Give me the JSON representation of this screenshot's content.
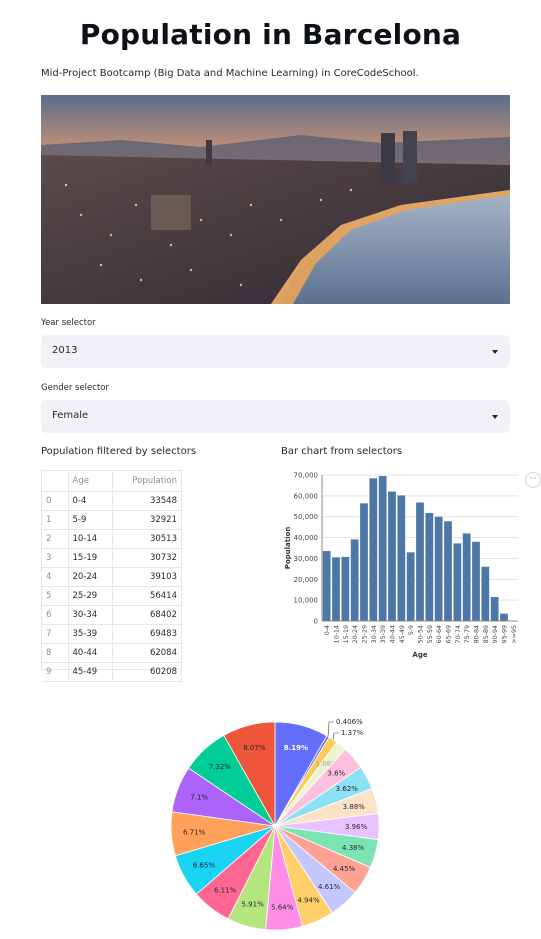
{
  "page": {
    "title": "Population in Barcelona",
    "subtitle": "Mid-Project Bootcamp (Big Data and Machine Learning) in CoreCodeSchool."
  },
  "hero": {
    "description": "Barcelona coastline at sunset"
  },
  "year_selector": {
    "label": "Year selector",
    "value": "2013"
  },
  "gender_selector": {
    "label": "Gender selector",
    "value": "Female"
  },
  "table": {
    "heading": "Population filtered by selectors",
    "columns": [
      "",
      "Age",
      "Population"
    ],
    "rows": [
      {
        "idx": "0",
        "age": "0-4",
        "pop": "33548"
      },
      {
        "idx": "1",
        "age": "5-9",
        "pop": "32921"
      },
      {
        "idx": "2",
        "age": "10-14",
        "pop": "30513"
      },
      {
        "idx": "3",
        "age": "15-19",
        "pop": "30732"
      },
      {
        "idx": "4",
        "age": "20-24",
        "pop": "39103"
      },
      {
        "idx": "5",
        "age": "25-29",
        "pop": "56414"
      },
      {
        "idx": "6",
        "age": "30-34",
        "pop": "68402"
      },
      {
        "idx": "7",
        "age": "35-39",
        "pop": "69483"
      },
      {
        "idx": "8",
        "age": "40-44",
        "pop": "62084"
      },
      {
        "idx": "9",
        "age": "45-49",
        "pop": "60208"
      }
    ]
  },
  "bar_heading": "Bar chart from selectors",
  "more_button": "···",
  "chart_data": [
    {
      "type": "bar",
      "title": "",
      "xlabel": "Age",
      "ylabel": "Population",
      "ylim": [
        0,
        70000
      ],
      "yticks": [
        "0",
        "10,000",
        "20,000",
        "30,000",
        "40,000",
        "50,000",
        "60,000",
        "70,000"
      ],
      "color": "#4c78a8",
      "categories": [
        "0-4",
        "10-14",
        "15-19",
        "20-24",
        "25-29",
        "30-34",
        "35-39",
        "40-44",
        "45-49",
        "5-9",
        "50-54",
        "55-59",
        "60-64",
        "65-69",
        "70-74",
        "75-79",
        "80-84",
        "85-89",
        "90-94",
        "95-99",
        ">=95"
      ],
      "values": [
        33548,
        30513,
        30732,
        39103,
        56414,
        68402,
        69483,
        62084,
        60208,
        32921,
        56800,
        51800,
        50000,
        47800,
        37200,
        42000,
        38000,
        26000,
        11500,
        3500,
        0
      ]
    },
    {
      "type": "pie",
      "title": "",
      "start_angle_deg": 0,
      "slices": [
        {
          "label": "8.19%",
          "value": 8.19,
          "color": "#636efa",
          "text_color": "#ffffff"
        },
        {
          "label": "0.406%",
          "value": 0.406,
          "color": "#636efa",
          "text_color": "#262730",
          "outside": true
        },
        {
          "label": "1.37%",
          "value": 1.37,
          "color": "#fecb52",
          "text_color": "#262730",
          "outside": true
        },
        {
          "label": "1.68%",
          "value": 1.68,
          "color": "#e8f5d0",
          "text_color": "#aaaaaa"
        },
        {
          "label": "3.6%",
          "value": 3.6,
          "color": "#ffc0de",
          "text_color": "#262730"
        },
        {
          "label": "3.62%",
          "value": 3.62,
          "color": "#8ce2f5",
          "text_color": "#262730"
        },
        {
          "label": "3.88%",
          "value": 3.88,
          "color": "#fde2c8",
          "text_color": "#262730"
        },
        {
          "label": "3.96%",
          "value": 3.96,
          "color": "#e7c4ff",
          "text_color": "#262730"
        },
        {
          "label": "4.38%",
          "value": 4.38,
          "color": "#7ce3b3",
          "text_color": "#262730"
        },
        {
          "label": "4.45%",
          "value": 4.45,
          "color": "#ffa294",
          "text_color": "#262730"
        },
        {
          "label": "4.61%",
          "value": 4.61,
          "color": "#c4c6ff",
          "text_color": "#262730"
        },
        {
          "label": "4.94%",
          "value": 4.94,
          "color": "#ffcf69",
          "text_color": "#262730"
        },
        {
          "label": "5.64%",
          "value": 5.64,
          "color": "#ff8fe6",
          "text_color": "#262730"
        },
        {
          "label": "5.91%",
          "value": 5.91,
          "color": "#b5e57f",
          "text_color": "#262730"
        },
        {
          "label": "6.11%",
          "value": 6.11,
          "color": "#ff6692",
          "text_color": "#262730"
        },
        {
          "label": "6.65%",
          "value": 6.65,
          "color": "#19d3f3",
          "text_color": "#262730"
        },
        {
          "label": "6.71%",
          "value": 6.71,
          "color": "#ffa15a",
          "text_color": "#262730"
        },
        {
          "label": "7.1%",
          "value": 7.1,
          "color": "#ab63fa",
          "text_color": "#262730"
        },
        {
          "label": "7.32%",
          "value": 7.32,
          "color": "#00cc96",
          "text_color": "#262730"
        },
        {
          "label": "8.07%",
          "value": 8.07,
          "color": "#ef553b",
          "text_color": "#262730"
        }
      ]
    }
  ]
}
